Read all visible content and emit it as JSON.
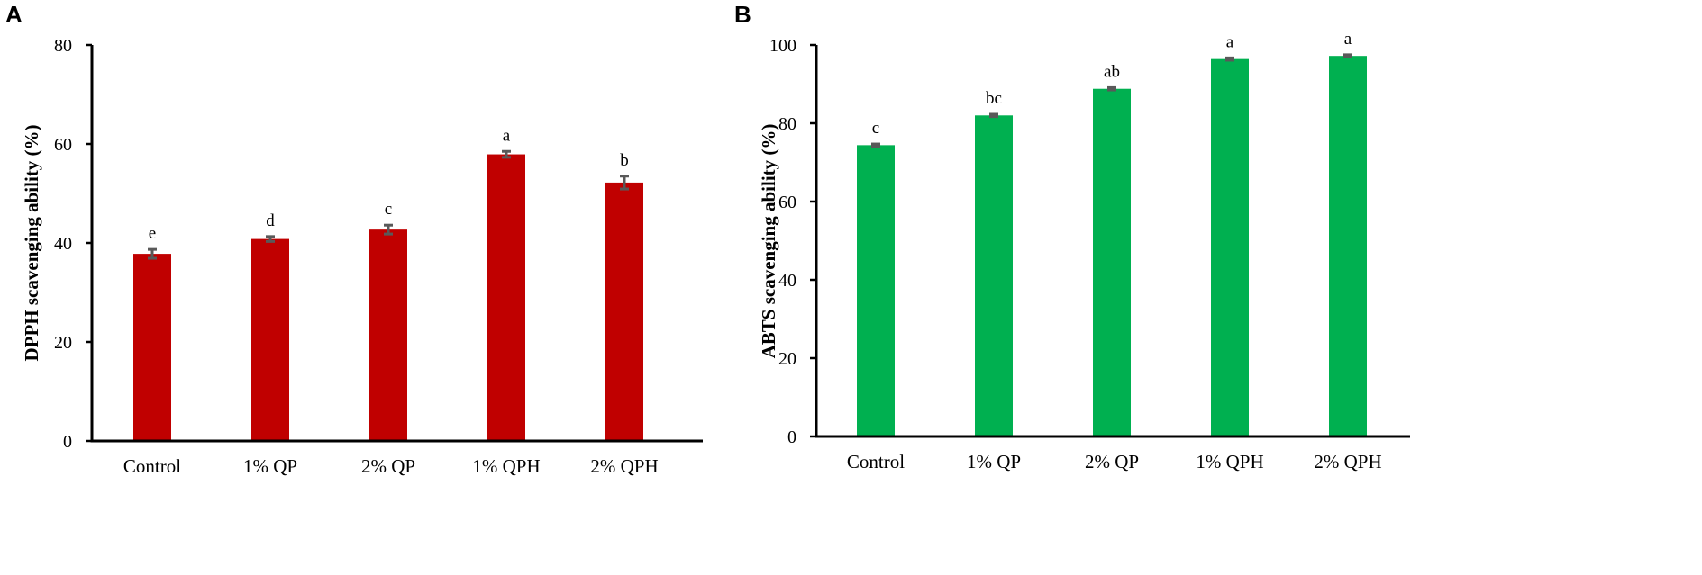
{
  "chart_data": [
    {
      "panel": "A",
      "type": "bar",
      "title": "",
      "xlabel": "",
      "ylabel": "DPPH scavenging ability (%)",
      "ylim": [
        0,
        80
      ],
      "yticks": [
        0,
        20,
        40,
        60,
        80
      ],
      "categories": [
        "Control",
        "1% QP",
        "2% QP",
        "1% QPH",
        "2% QPH"
      ],
      "values": [
        37.8,
        40.8,
        42.7,
        57.9,
        52.2
      ],
      "errors": [
        0.9,
        0.5,
        0.9,
        0.6,
        1.3
      ],
      "significance": [
        "e",
        "d",
        "c",
        "a",
        "b"
      ],
      "color": "#c00000"
    },
    {
      "panel": "B",
      "type": "bar",
      "title": "",
      "xlabel": "",
      "ylabel": "ABTS scavenging ability (%)",
      "ylim": [
        0,
        100
      ],
      "yticks": [
        0,
        20,
        40,
        60,
        80,
        100
      ],
      "categories": [
        "Control",
        "1% QP",
        "2% QP",
        "1% QPH",
        "2% QPH"
      ],
      "values": [
        74.4,
        82.0,
        88.8,
        96.4,
        97.2
      ],
      "errors": [
        0.3,
        0.3,
        0.3,
        0.3,
        0.3
      ],
      "significance": [
        "c",
        "bc",
        "ab",
        "a",
        "a"
      ],
      "color": "#00b050"
    }
  ]
}
